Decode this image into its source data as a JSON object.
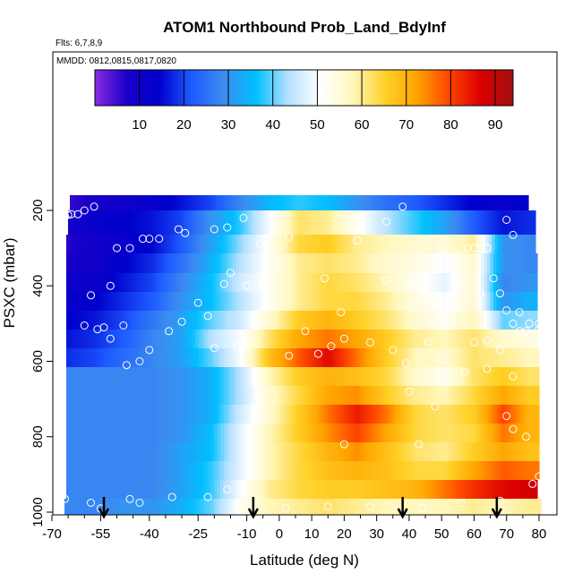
{
  "chart_data": {
    "type": "heatmap",
    "title": "ATOM1 Northbound Prob_Land_BdyInf",
    "flights_note": "Flts: 6,7,8,9",
    "dates_note": "MMDD: 0812,0815,0817,0820",
    "xlabel": "Latitude (deg N)",
    "ylabel": "PSXC (mbar)",
    "xlim": [
      -70,
      80
    ],
    "ylim": [
      1000,
      0
    ],
    "x_ticks": [
      -70,
      -55,
      -40,
      -25,
      -10,
      0,
      10,
      20,
      30,
      40,
      50,
      60,
      70,
      80
    ],
    "x_tick_labels": [
      "-70",
      "-55",
      "-40",
      "-25",
      "-10",
      "0",
      "10",
      "20",
      "30",
      "40",
      "50",
      "60",
      "70",
      "80"
    ],
    "x_minor_ticks": [
      -65,
      -60,
      -50,
      -45,
      -35,
      -30,
      -20,
      -15,
      -5,
      5,
      15,
      25,
      35,
      45,
      55,
      65,
      75
    ],
    "y_ticks": [
      200,
      400,
      600,
      800,
      1000
    ],
    "y_tick_labels": [
      "200",
      "400",
      "600",
      "800",
      "1000"
    ],
    "colorbar": {
      "range": [
        0,
        94
      ],
      "ticks": [
        10,
        20,
        30,
        40,
        50,
        60,
        70,
        80,
        90
      ],
      "tick_labels": [
        "10",
        "20",
        "30",
        "40",
        "50",
        "60",
        "70",
        "80",
        "90"
      ]
    },
    "colormap": [
      "#8a2be2",
      "#1a00c8",
      "#0000cd",
      "#1e5aff",
      "#3c8cf0",
      "#00bfff",
      "#b4e0ff",
      "#ffffff",
      "#fff8c0",
      "#ffd22a",
      "#ffa500",
      "#ff4500",
      "#dc0000",
      "#a01010"
    ],
    "pressure_levels": [
      175,
      225,
      275,
      325,
      375,
      425,
      475,
      525,
      575,
      625,
      675,
      725,
      775,
      825,
      875,
      925,
      975
    ],
    "latitudes": [
      -66,
      -57,
      -48,
      -39,
      -30,
      -21,
      -12,
      -3,
      6,
      15,
      24,
      33,
      42,
      51,
      60,
      69,
      77
    ],
    "values": [
      [
        5,
        8,
        10,
        12,
        16,
        20,
        28,
        35,
        38,
        36,
        30,
        25,
        22,
        18,
        14,
        12,
        15
      ],
      [
        8,
        12,
        14,
        16,
        20,
        30,
        38,
        50,
        62,
        60,
        52,
        44,
        38,
        32,
        22,
        16,
        18
      ],
      [
        6,
        10,
        12,
        15,
        22,
        32,
        42,
        52,
        64,
        66,
        60,
        58,
        56,
        55,
        60,
        30,
        28
      ],
      [
        8,
        10,
        14,
        18,
        25,
        34,
        44,
        52,
        60,
        62,
        60,
        56,
        54,
        50,
        56,
        30,
        28
      ],
      [
        10,
        12,
        16,
        20,
        28,
        36,
        46,
        52,
        60,
        64,
        62,
        58,
        52,
        48,
        56,
        28,
        30
      ],
      [
        12,
        14,
        18,
        22,
        30,
        36,
        44,
        52,
        60,
        64,
        64,
        60,
        54,
        50,
        56,
        30,
        34
      ],
      [
        14,
        16,
        20,
        26,
        32,
        40,
        46,
        56,
        66,
        70,
        66,
        62,
        56,
        52,
        58,
        40,
        42
      ],
      [
        16,
        18,
        22,
        28,
        32,
        44,
        50,
        62,
        72,
        76,
        72,
        66,
        60,
        58,
        62,
        56,
        54
      ],
      [
        18,
        20,
        24,
        28,
        32,
        40,
        50,
        68,
        78,
        86,
        76,
        66,
        58,
        56,
        62,
        60,
        58
      ],
      [
        28,
        28,
        28,
        28,
        30,
        34,
        44,
        58,
        66,
        70,
        68,
        64,
        56,
        52,
        62,
        66,
        62
      ],
      [
        28,
        28,
        28,
        28,
        30,
        34,
        44,
        56,
        64,
        72,
        74,
        66,
        60,
        58,
        64,
        72,
        66
      ],
      [
        28,
        28,
        28,
        28,
        30,
        34,
        46,
        56,
        66,
        76,
        84,
        76,
        64,
        62,
        66,
        80,
        70
      ],
      [
        28,
        28,
        28,
        28,
        30,
        36,
        48,
        58,
        66,
        74,
        80,
        72,
        64,
        62,
        64,
        76,
        70
      ],
      [
        28,
        28,
        28,
        28,
        32,
        36,
        48,
        58,
        64,
        70,
        74,
        68,
        62,
        60,
        66,
        72,
        68
      ],
      [
        28,
        28,
        28,
        28,
        32,
        38,
        48,
        58,
        64,
        68,
        70,
        68,
        64,
        64,
        72,
        78,
        76
      ],
      [
        28,
        28,
        28,
        28,
        32,
        38,
        50,
        60,
        64,
        66,
        66,
        68,
        70,
        76,
        82,
        86,
        88
      ],
      [
        28,
        28,
        30,
        30,
        34,
        40,
        52,
        58,
        60,
        62,
        60,
        58,
        58,
        58,
        60,
        58,
        60
      ]
    ],
    "sample_points": [
      [
        -67,
        210
      ],
      [
        -66,
        215
      ],
      [
        -65,
        212
      ],
      [
        -64,
        210
      ],
      [
        -62,
        210
      ],
      [
        -60,
        200
      ],
      [
        -57,
        190
      ],
      [
        -50,
        300
      ],
      [
        -46,
        300
      ],
      [
        -42,
        275
      ],
      [
        -40,
        275
      ],
      [
        -37,
        275
      ],
      [
        -31,
        250
      ],
      [
        -29,
        260
      ],
      [
        -20,
        250
      ],
      [
        -16,
        245
      ],
      [
        -11,
        220
      ],
      [
        -6,
        290
      ],
      [
        3,
        270
      ],
      [
        24,
        280
      ],
      [
        33,
        230
      ],
      [
        38,
        190
      ],
      [
        50,
        300
      ],
      [
        58,
        300
      ],
      [
        60,
        300
      ],
      [
        62,
        300
      ],
      [
        64,
        300
      ],
      [
        70,
        225
      ],
      [
        72,
        265
      ],
      [
        -52,
        400
      ],
      [
        -58,
        425
      ],
      [
        -67,
        475
      ],
      [
        -60,
        505
      ],
      [
        -56,
        515
      ],
      [
        -54,
        510
      ],
      [
        -48,
        505
      ],
      [
        -40,
        570
      ],
      [
        -34,
        520
      ],
      [
        -30,
        495
      ],
      [
        -25,
        445
      ],
      [
        -22,
        480
      ],
      [
        -17,
        395
      ],
      [
        -15,
        365
      ],
      [
        -10,
        400
      ],
      [
        -5,
        395
      ],
      [
        0,
        345
      ],
      [
        14,
        380
      ],
      [
        19,
        470
      ],
      [
        33,
        385
      ],
      [
        40,
        395
      ],
      [
        44,
        430
      ],
      [
        48,
        500
      ],
      [
        55,
        315
      ],
      [
        62,
        420
      ],
      [
        66,
        380
      ],
      [
        68,
        420
      ],
      [
        70,
        465
      ],
      [
        72,
        500
      ],
      [
        74,
        520
      ],
      [
        77,
        500
      ],
      [
        80,
        500
      ],
      [
        -67,
        550
      ],
      [
        -52,
        540
      ],
      [
        -47,
        610
      ],
      [
        -43,
        600
      ],
      [
        -20,
        565
      ],
      [
        -13,
        560
      ],
      [
        3,
        585
      ],
      [
        8,
        520
      ],
      [
        12,
        580
      ],
      [
        16,
        560
      ],
      [
        20,
        540
      ],
      [
        28,
        550
      ],
      [
        35,
        570
      ],
      [
        39,
        605
      ],
      [
        46,
        550
      ],
      [
        50,
        595
      ],
      [
        57,
        630
      ],
      [
        60,
        550
      ],
      [
        64,
        545
      ],
      [
        68,
        570
      ],
      [
        72,
        640
      ],
      [
        74,
        470
      ],
      [
        76,
        520
      ],
      [
        80,
        515
      ],
      [
        40,
        680
      ],
      [
        48,
        720
      ],
      [
        64,
        620
      ],
      [
        70,
        745
      ],
      [
        72,
        780
      ],
      [
        76,
        800
      ],
      [
        -16,
        940
      ],
      [
        -22,
        960
      ],
      [
        -33,
        960
      ],
      [
        -46,
        965
      ],
      [
        -58,
        975
      ],
      [
        -66,
        965
      ],
      [
        -8,
        985
      ],
      [
        2,
        990
      ],
      [
        15,
        985
      ],
      [
        28,
        985
      ],
      [
        44,
        990
      ],
      [
        56,
        975
      ],
      [
        68,
        970
      ],
      [
        78,
        925
      ],
      [
        80,
        905
      ],
      [
        20,
        820
      ],
      [
        43,
        820
      ],
      [
        -55,
        990
      ],
      [
        -43,
        975
      ]
    ],
    "arrows_latitude": [
      -54,
      -8,
      38,
      67
    ]
  }
}
